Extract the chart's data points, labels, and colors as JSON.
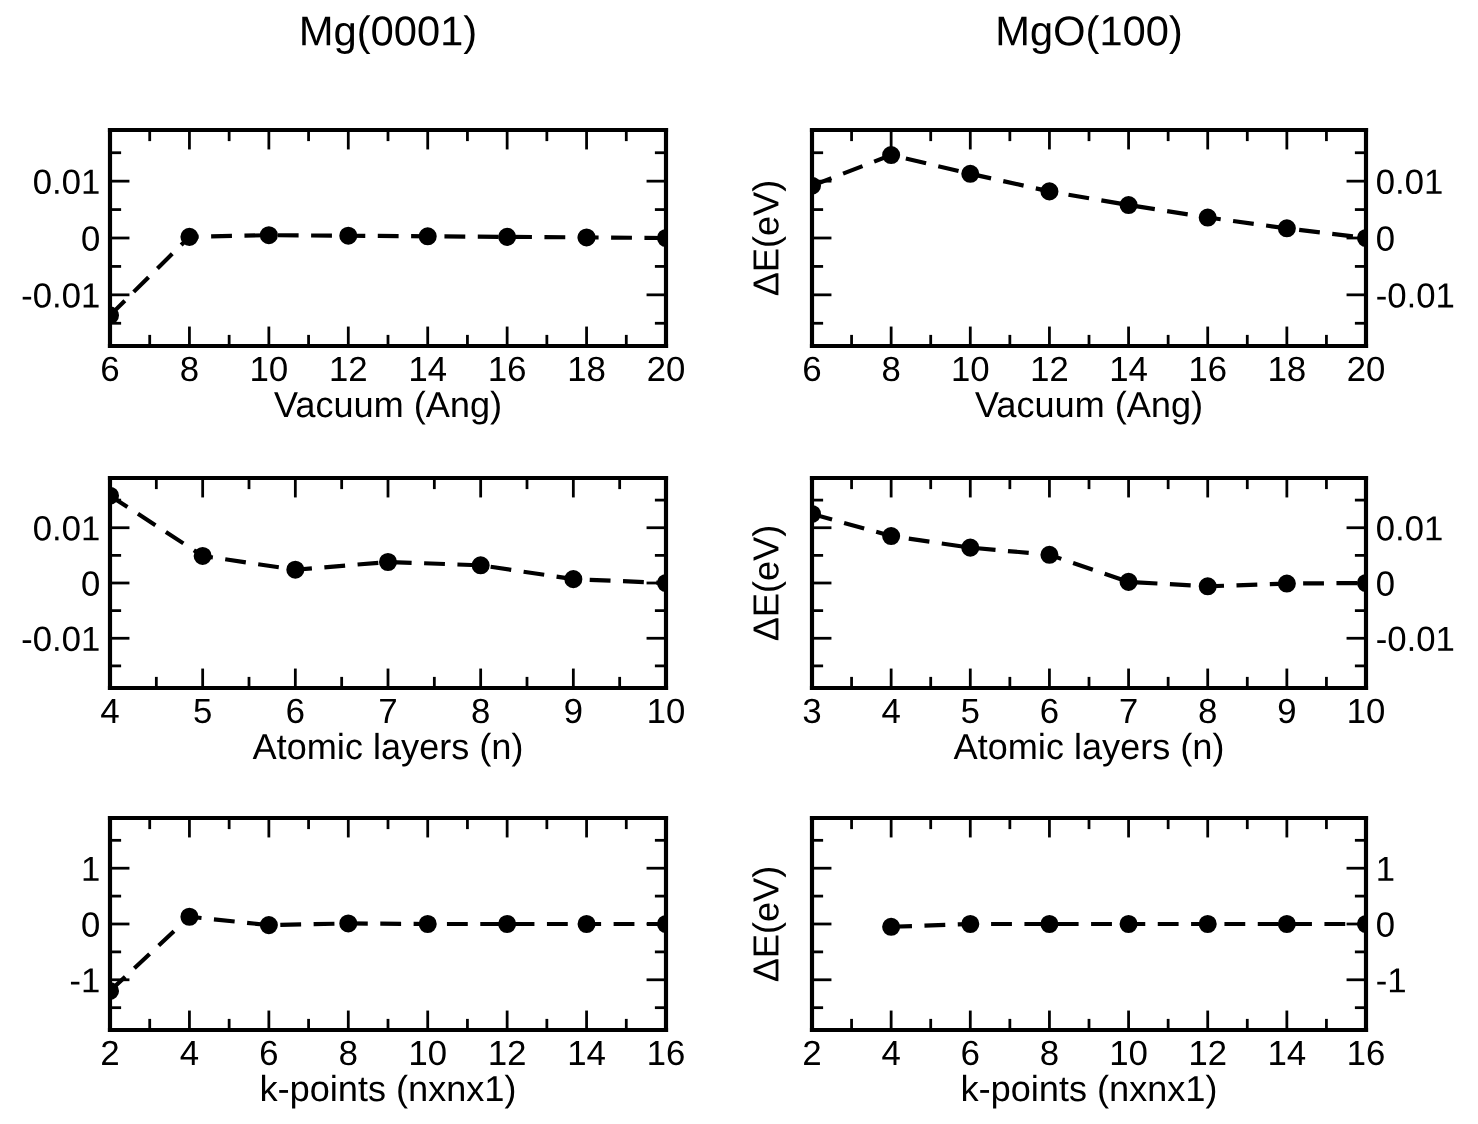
{
  "chart_data": [
    {
      "type": "line",
      "title": "Mg(0001)",
      "xlabel": "Vacuum (Ang)",
      "x": [
        6,
        8,
        10,
        12,
        14,
        16,
        18,
        20
      ],
      "series": [
        {
          "color": "#000000",
          "values": [
            -0.0136,
            0.0002,
            0.0005,
            0.0004,
            0.0003,
            0.0002,
            0.0001,
            0
          ]
        }
      ],
      "xlim": [
        6,
        20
      ],
      "xticks": [
        6,
        8,
        10,
        12,
        14,
        16,
        18,
        20
      ],
      "ylim": [
        -0.019,
        0.019
      ],
      "yticks": [
        -0.01,
        0,
        0.01
      ],
      "marker": "circle",
      "line_style": "dashed",
      "grid": false,
      "legend": false
    },
    {
      "type": "line",
      "title": "MgO(100)",
      "xlabel": "Vacuum (Ang)",
      "ylabel": "ΔE(eV)",
      "x": [
        6,
        8,
        10,
        12,
        14,
        16,
        18,
        20
      ],
      "series": [
        {
          "color": "#000000",
          "values": [
            0.0092,
            0.0146,
            0.0113,
            0.0082,
            0.0058,
            0.0036,
            0.0017,
            0
          ]
        }
      ],
      "xlim": [
        6,
        20
      ],
      "xticks": [
        6,
        8,
        10,
        12,
        14,
        16,
        18,
        20
      ],
      "ylim": [
        -0.019,
        0.019
      ],
      "yticks": [
        -0.01,
        0,
        0.01
      ],
      "marker": "circle",
      "line_style": "dashed",
      "grid": false,
      "legend": false
    },
    {
      "type": "line",
      "xlabel": "Atomic layers (n)",
      "x": [
        4,
        5,
        6,
        7,
        8,
        9,
        10
      ],
      "series": [
        {
          "color": "#000000",
          "values": [
            0.0158,
            0.0049,
            0.0024,
            0.0038,
            0.0032,
            0.0007,
            0
          ]
        }
      ],
      "xlim": [
        4,
        10
      ],
      "xticks": [
        4,
        5,
        6,
        7,
        8,
        9,
        10
      ],
      "ylim": [
        -0.019,
        0.019
      ],
      "yticks": [
        -0.01,
        0,
        0.01
      ],
      "marker": "circle",
      "line_style": "dashed",
      "grid": false,
      "legend": false
    },
    {
      "type": "line",
      "xlabel": "Atomic layers (n)",
      "ylabel": "ΔE(eV)",
      "x": [
        3,
        4,
        5,
        6,
        7,
        8,
        9,
        10
      ],
      "series": [
        {
          "color": "#000000",
          "values": [
            0.0125,
            0.0085,
            0.0064,
            0.0051,
            0.0002,
            -0.0006,
            -0.0001,
            0
          ]
        }
      ],
      "xlim": [
        3,
        10
      ],
      "xticks": [
        3,
        4,
        5,
        6,
        7,
        8,
        9,
        10
      ],
      "ylim": [
        -0.019,
        0.019
      ],
      "yticks": [
        -0.01,
        0,
        0.01
      ],
      "marker": "circle",
      "line_style": "dashed",
      "grid": false,
      "legend": false
    },
    {
      "type": "line",
      "xlabel": "k-points (nxnx1)",
      "x": [
        2,
        4,
        6,
        8,
        10,
        12,
        14,
        16
      ],
      "series": [
        {
          "color": "#000000",
          "values": [
            -1.2,
            0.13,
            -0.02,
            0.01,
            0,
            0,
            0,
            0
          ]
        }
      ],
      "xlim": [
        2,
        16
      ],
      "xticks": [
        2,
        4,
        6,
        8,
        10,
        12,
        14,
        16
      ],
      "ylim": [
        -1.9,
        1.9
      ],
      "yticks": [
        -1,
        0,
        1
      ],
      "marker": "circle",
      "line_style": "dashed",
      "grid": false,
      "legend": false
    },
    {
      "type": "line",
      "xlabel": "k-points (nxnx1)",
      "ylabel": "ΔE(eV)",
      "x": [
        4,
        6,
        8,
        10,
        12,
        14,
        16
      ],
      "series": [
        {
          "color": "#000000",
          "values": [
            -0.05,
            0,
            0,
            0,
            0,
            0,
            0
          ]
        }
      ],
      "xlim": [
        2,
        16
      ],
      "xticks": [
        2,
        4,
        6,
        8,
        10,
        12,
        14,
        16
      ],
      "ylim": [
        -1.9,
        1.9
      ],
      "yticks": [
        -1,
        0,
        1
      ],
      "marker": "circle",
      "line_style": "dashed",
      "grid": false,
      "legend": false
    }
  ]
}
